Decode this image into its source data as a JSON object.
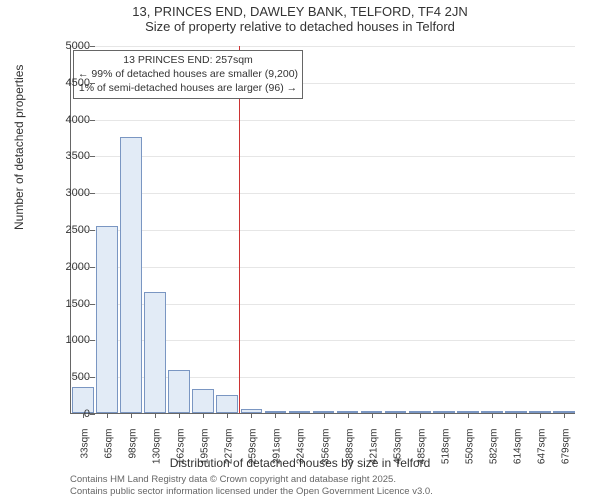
{
  "title": "13, PRINCES END, DAWLEY BANK, TELFORD, TF4 2JN",
  "subtitle": "Size of property relative to detached houses in Telford",
  "ylabel": "Number of detached properties",
  "xlabel": "Distribution of detached houses by size in Telford",
  "credits_line1": "Contains HM Land Registry data © Crown copyright and database right 2025.",
  "credits_line2": "Contains public sector information licensed under the Open Government Licence v3.0.",
  "chart": {
    "type": "bar",
    "bar_fill": "#e2ebf6",
    "bar_border": "#7a96c2",
    "grid_color": "#e6e6e6",
    "axis_color": "#666666",
    "background_color": "#ffffff",
    "marker_color": "#cc3333",
    "ylim": [
      0,
      5000
    ],
    "ytick_step": 500,
    "yticks": [
      0,
      500,
      1000,
      1500,
      2000,
      2500,
      3000,
      3500,
      4000,
      4500,
      5000
    ],
    "xticks": [
      "33sqm",
      "65sqm",
      "98sqm",
      "130sqm",
      "162sqm",
      "195sqm",
      "227sqm",
      "259sqm",
      "291sqm",
      "324sqm",
      "356sqm",
      "388sqm",
      "421sqm",
      "453sqm",
      "485sqm",
      "518sqm",
      "550sqm",
      "582sqm",
      "614sqm",
      "647sqm",
      "679sqm"
    ],
    "values": [
      360,
      2540,
      3750,
      1650,
      590,
      320,
      240,
      50,
      30,
      20,
      15,
      10,
      10,
      5,
      5,
      5,
      5,
      3,
      3,
      2,
      2
    ],
    "bar_width_ratio": 0.9,
    "marker_line_x_index": 7,
    "annotation": {
      "line1": "13 PRINCES END: 257sqm",
      "line2": "← 99% of detached houses are smaller (9,200)",
      "line3": "1% of semi-detached houses are larger (96) →",
      "border_color": "#666666",
      "background": "#ffffff",
      "fontsize": 10.5
    }
  }
}
